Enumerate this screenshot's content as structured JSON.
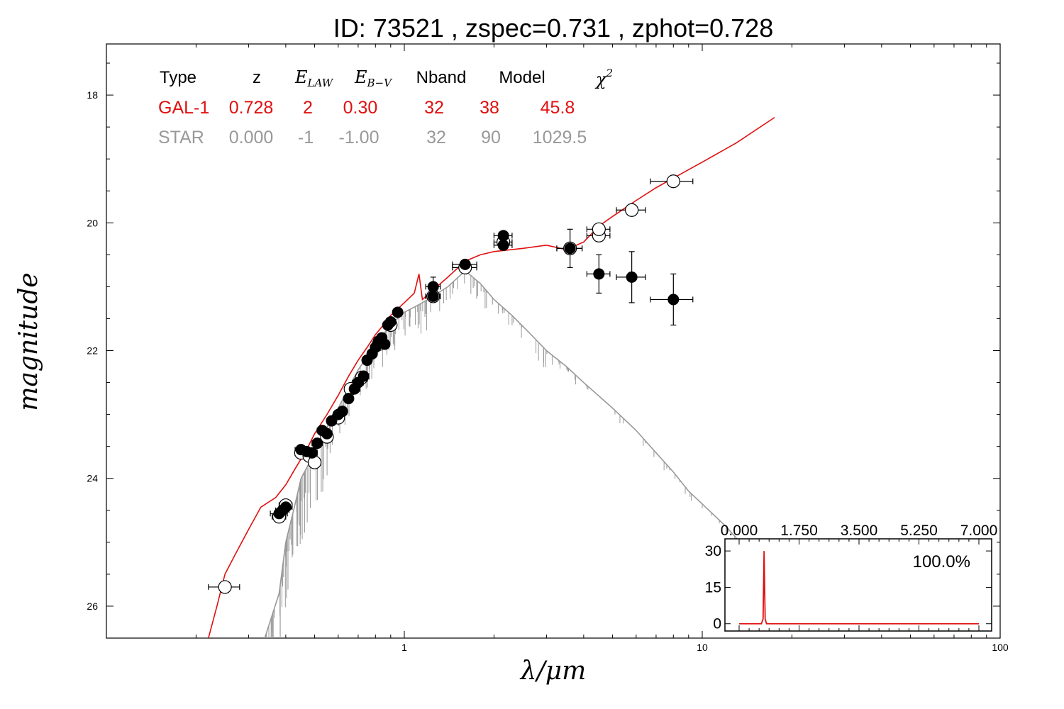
{
  "title": "ID:  73521 , zspec=0.731 , zphot=0.728",
  "colors": {
    "galaxy": "#e01010",
    "star": "#999999",
    "axes": "#000000"
  },
  "chart_data": {
    "type": "scatter",
    "xscale": "log",
    "xlim": [
      0.1,
      100
    ],
    "ylim": [
      26.5,
      17.2
    ],
    "xticks": [
      "1",
      "10",
      "100"
    ],
    "yticks": [
      "18",
      "20",
      "22",
      "24",
      "26"
    ],
    "xlabel": "λ/μm",
    "ylabel": "magnitude",
    "table": {
      "headers": [
        "Type",
        "z",
        "E_LAW",
        "E_B−V",
        "Nband",
        "Model",
        "χ²"
      ],
      "header_plain": [
        "Type",
        "z",
        "",
        "",
        "Nband",
        "Model",
        ""
      ],
      "header_math": [
        {
          "base": "E",
          "sub": "LAW"
        },
        {
          "base": "E",
          "sub": "B−V"
        },
        {
          "base": "χ",
          "sup": "2"
        }
      ],
      "rows": [
        {
          "type": "GAL-1",
          "z": "0.728",
          "law": "2",
          "ebv": "0.30",
          "nband": "32",
          "model": "38",
          "chi2": "45.8"
        },
        {
          "type": "STAR",
          "z": "0.000",
          "law": "-1",
          "ebv": "-1.00",
          "nband": "32",
          "model": "90",
          "chi2": "1029.5"
        }
      ]
    },
    "galaxy_model": [
      [
        0.22,
        26.5
      ],
      [
        0.235,
        26.0
      ],
      [
        0.25,
        25.5
      ],
      [
        0.27,
        25.2
      ],
      [
        0.3,
        24.8
      ],
      [
        0.33,
        24.45
      ],
      [
        0.37,
        24.3
      ],
      [
        0.4,
        24.1
      ],
      [
        0.43,
        23.85
      ],
      [
        0.47,
        23.55
      ],
      [
        0.5,
        23.3
      ],
      [
        0.55,
        23.0
      ],
      [
        0.6,
        22.7
      ],
      [
        0.65,
        22.4
      ],
      [
        0.7,
        22.15
      ],
      [
        0.75,
        21.95
      ],
      [
        0.8,
        21.75
      ],
      [
        0.85,
        21.6
      ],
      [
        0.9,
        21.45
      ],
      [
        1.0,
        21.25
      ],
      [
        1.08,
        21.1
      ],
      [
        1.12,
        20.8
      ],
      [
        1.15,
        21.2
      ],
      [
        1.25,
        21.05
      ],
      [
        1.4,
        20.85
      ],
      [
        1.6,
        20.6
      ],
      [
        1.8,
        20.5
      ],
      [
        2.0,
        20.45
      ],
      [
        2.5,
        20.4
      ],
      [
        3.0,
        20.35
      ],
      [
        3.5,
        20.42
      ],
      [
        4.0,
        20.3
      ],
      [
        4.5,
        20.05
      ],
      [
        5.0,
        19.9
      ],
      [
        6.0,
        19.65
      ],
      [
        7.0,
        19.45
      ],
      [
        8.0,
        19.3
      ],
      [
        10.0,
        19.05
      ],
      [
        13.0,
        18.75
      ],
      [
        17.5,
        18.35
      ]
    ],
    "star_model": [
      [
        0.34,
        26.5
      ],
      [
        0.38,
        25.8
      ],
      [
        0.4,
        25.0
      ],
      [
        0.43,
        24.4
      ],
      [
        0.45,
        24.0
      ],
      [
        0.5,
        23.6
      ],
      [
        0.55,
        23.2
      ],
      [
        0.6,
        22.9
      ],
      [
        0.7,
        22.3
      ],
      [
        0.8,
        21.9
      ],
      [
        0.9,
        21.6
      ],
      [
        1.0,
        21.4
      ],
      [
        1.1,
        21.3
      ],
      [
        1.2,
        21.2
      ],
      [
        1.4,
        21.0
      ],
      [
        1.6,
        20.75
      ],
      [
        1.8,
        20.95
      ],
      [
        2.0,
        21.2
      ],
      [
        2.3,
        21.45
      ],
      [
        2.6,
        21.7
      ],
      [
        3.0,
        22.0
      ],
      [
        3.5,
        22.25
      ],
      [
        4.0,
        22.5
      ],
      [
        5.0,
        22.9
      ],
      [
        6.0,
        23.25
      ],
      [
        7.0,
        23.6
      ],
      [
        8.0,
        23.9
      ],
      [
        9.0,
        24.2
      ],
      [
        10.0,
        24.4
      ],
      [
        12.0,
        24.75
      ],
      [
        14.0,
        25.1
      ],
      [
        16.0,
        25.4
      ]
    ],
    "observed": [
      {
        "x": 0.38,
        "y": 24.55,
        "xerr": 0.025
      },
      {
        "x": 0.39,
        "y": 24.5,
        "xerr": 0.02
      },
      {
        "x": 0.4,
        "y": 24.45,
        "xerr": 0.02
      },
      {
        "x": 0.45,
        "y": 23.55,
        "xerr": 0.02
      },
      {
        "x": 0.47,
        "y": 23.58,
        "xerr": 0.02
      },
      {
        "x": 0.49,
        "y": 23.6,
        "xerr": 0.02
      },
      {
        "x": 0.51,
        "y": 23.45,
        "xerr": 0.02
      },
      {
        "x": 0.53,
        "y": 23.25,
        "xerr": 0.02
      },
      {
        "x": 0.55,
        "y": 23.3,
        "xerr": 0.02
      },
      {
        "x": 0.57,
        "y": 23.1,
        "xerr": 0.02
      },
      {
        "x": 0.6,
        "y": 23.0,
        "xerr": 0.02
      },
      {
        "x": 0.62,
        "y": 22.95,
        "xerr": 0.02
      },
      {
        "x": 0.65,
        "y": 22.75,
        "xerr": 0.02
      },
      {
        "x": 0.68,
        "y": 22.6,
        "xerr": 0.03
      },
      {
        "x": 0.7,
        "y": 22.5,
        "xerr": 0.03
      },
      {
        "x": 0.73,
        "y": 22.4,
        "xerr": 0.03
      },
      {
        "x": 0.75,
        "y": 22.15,
        "xerr": 0.02
      },
      {
        "x": 0.78,
        "y": 22.05,
        "xerr": 0.02
      },
      {
        "x": 0.8,
        "y": 21.95,
        "xerr": 0.02
      },
      {
        "x": 0.82,
        "y": 21.85,
        "xerr": 0.02
      },
      {
        "x": 0.84,
        "y": 21.8,
        "xerr": 0.02
      },
      {
        "x": 0.86,
        "y": 21.9,
        "xerr": 0.02
      },
      {
        "x": 0.88,
        "y": 21.6,
        "xerr": 0.02
      },
      {
        "x": 0.9,
        "y": 21.55,
        "xerr": 0.02
      },
      {
        "x": 0.95,
        "y": 21.4,
        "xerr": 0.03
      },
      {
        "x": 1.25,
        "y": 21.0,
        "xerr": 0.07,
        "yerr": 0.15
      },
      {
        "x": 1.25,
        "y": 21.15,
        "xerr": 0.07
      },
      {
        "x": 1.6,
        "y": 20.65,
        "xerr": 0.15
      },
      {
        "x": 2.15,
        "y": 20.2,
        "xerr": 0.15
      },
      {
        "x": 2.15,
        "y": 20.35,
        "xerr": 0.15
      },
      {
        "x": 3.6,
        "y": 20.4,
        "xerr": 0.35,
        "yerr": 0.3
      },
      {
        "x": 4.5,
        "y": 20.8,
        "xerr": 0.4,
        "yerr": 0.3
      },
      {
        "x": 5.8,
        "y": 20.85,
        "xerr": 0.65,
        "yerr": 0.4
      },
      {
        "x": 8.0,
        "y": 21.2,
        "xerr": 1.3,
        "yerr": 0.4
      }
    ],
    "model_mags": [
      {
        "x": 0.25,
        "y": 25.7,
        "xerr": 0.03
      },
      {
        "x": 0.38,
        "y": 24.6,
        "xerr": 0.02
      },
      {
        "x": 0.4,
        "y": 24.42,
        "xerr": 0.02
      },
      {
        "x": 0.45,
        "y": 23.6,
        "xerr": 0.02
      },
      {
        "x": 0.48,
        "y": 23.65,
        "xerr": 0.02
      },
      {
        "x": 0.5,
        "y": 23.75,
        "xerr": 0.02
      },
      {
        "x": 0.55,
        "y": 23.35,
        "xerr": 0.02
      },
      {
        "x": 0.6,
        "y": 23.05,
        "xerr": 0.02
      },
      {
        "x": 0.66,
        "y": 22.6,
        "xerr": 0.03
      },
      {
        "x": 0.72,
        "y": 22.42,
        "xerr": 0.03
      },
      {
        "x": 0.82,
        "y": 21.9,
        "xerr": 0.02
      },
      {
        "x": 0.9,
        "y": 21.6,
        "xerr": 0.02
      },
      {
        "x": 1.25,
        "y": 21.15,
        "xerr": 0.07
      },
      {
        "x": 1.6,
        "y": 20.7,
        "xerr": 0.15
      },
      {
        "x": 2.15,
        "y": 20.3,
        "xerr": 0.15
      },
      {
        "x": 3.6,
        "y": 20.4,
        "xerr": 0.35
      },
      {
        "x": 4.5,
        "y": 20.2,
        "xerr": 0.4
      },
      {
        "x": 4.5,
        "y": 20.1,
        "xerr": 0.4
      },
      {
        "x": 5.8,
        "y": 19.8,
        "xerr": 0.65
      },
      {
        "x": 8.0,
        "y": 19.35,
        "xerr": 1.3
      }
    ],
    "inset": {
      "type": "line",
      "xlim": [
        0,
        7
      ],
      "ylim": [
        -3,
        35
      ],
      "xticks": [
        "0.000",
        "1.750",
        "3.500",
        "5.250",
        "7.000"
      ],
      "yticks": [
        "0",
        "15",
        "30"
      ],
      "annotation": "100.0%",
      "pdz": [
        [
          0,
          0
        ],
        [
          0.65,
          0
        ],
        [
          0.7,
          2
        ],
        [
          0.728,
          30
        ],
        [
          0.76,
          2
        ],
        [
          0.8,
          0
        ],
        [
          7.0,
          0
        ]
      ]
    }
  }
}
